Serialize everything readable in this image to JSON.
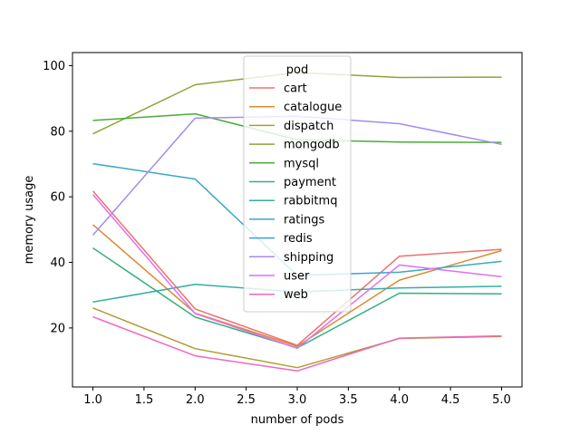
{
  "chart_data": {
    "type": "line",
    "title": "",
    "xlabel": "number of pods",
    "ylabel": "memory usage",
    "xlim": [
      0.8,
      5.2
    ],
    "ylim": [
      2,
      104
    ],
    "xticks": [
      1.0,
      1.5,
      2.0,
      2.5,
      3.0,
      3.5,
      4.0,
      4.5,
      5.0
    ],
    "xtick_labels": [
      "1.0",
      "1.5",
      "2.0",
      "2.5",
      "3.0",
      "3.5",
      "4.0",
      "4.5",
      "5.0"
    ],
    "yticks": [
      20,
      40,
      60,
      80,
      100
    ],
    "ytick_labels": [
      "20",
      "40",
      "60",
      "80",
      "100"
    ],
    "grid": false,
    "legend": {
      "title": "pod",
      "placement": "top-center"
    },
    "x": [
      1,
      2,
      3,
      4,
      5
    ],
    "series": [
      {
        "name": "cart",
        "color": "#f0706b",
        "values": [
          61.8,
          25.8,
          14.7,
          41.9,
          44.0
        ]
      },
      {
        "name": "catalogue",
        "color": "#dc8932",
        "values": [
          51.5,
          24.5,
          14.4,
          34.6,
          43.6
        ]
      },
      {
        "name": "dispatch",
        "color": "#ae9d31",
        "values": [
          26.1,
          13.7,
          7.9,
          16.8,
          17.4
        ]
      },
      {
        "name": "mongodb",
        "color": "#8ea337",
        "values": [
          79.2,
          94.2,
          97.9,
          96.4,
          96.5
        ]
      },
      {
        "name": "mysql",
        "color": "#49ad36",
        "values": [
          83.3,
          85.3,
          77.4,
          76.7,
          76.6
        ]
      },
      {
        "name": "payment",
        "color": "#33b07d",
        "values": [
          44.4,
          23.3,
          13.9,
          30.6,
          30.4
        ]
      },
      {
        "name": "rabbitmq",
        "color": "#36ada3",
        "values": [
          27.9,
          33.3,
          31.0,
          32.2,
          32.7
        ]
      },
      {
        "name": "ratings",
        "color": "#38a9c4",
        "values": [
          70.1,
          65.4,
          36.0,
          37.0,
          40.3
        ]
      },
      {
        "name": "redis",
        "color": "#3aa0e4",
        "values": [
          null,
          null,
          null,
          null,
          null
        ]
      },
      {
        "name": "shipping",
        "color": "#a58af2",
        "values": [
          48.3,
          84.0,
          84.6,
          82.3,
          76.0
        ]
      },
      {
        "name": "user",
        "color": "#e16fef",
        "values": [
          60.7,
          24.4,
          13.8,
          39.2,
          35.6
        ]
      },
      {
        "name": "web",
        "color": "#f067bc",
        "values": [
          23.4,
          11.5,
          6.9,
          16.9,
          17.6
        ]
      }
    ]
  }
}
